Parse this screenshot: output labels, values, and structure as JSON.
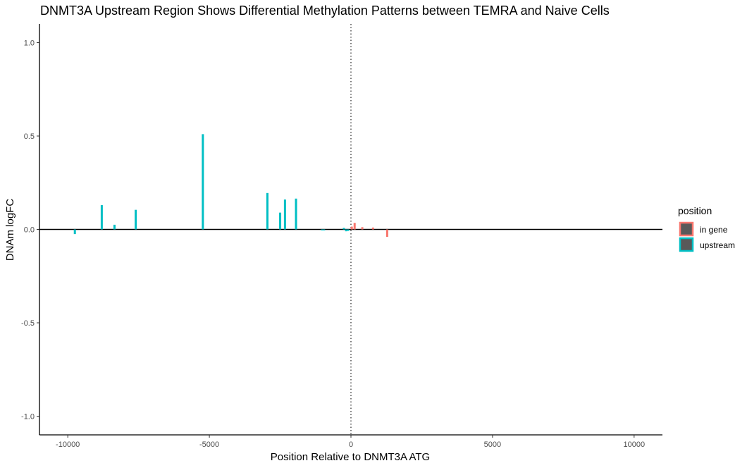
{
  "chart_data": {
    "type": "bar",
    "title": "DNMT3A Upstream Region Shows Differential Methylation Patterns between TEMRA and Naive Cells",
    "xlabel": "Position Relative to DNMT3A ATG",
    "ylabel": "DNAm logFC",
    "xlim": [
      -11000,
      11000
    ],
    "ylim": [
      -1.1,
      1.1
    ],
    "x_ticks": [
      -10000,
      -5000,
      0,
      5000,
      10000
    ],
    "x_tick_labels": [
      "-10000",
      "-5000",
      "0",
      "5000",
      "10000"
    ],
    "y_ticks": [
      -1.0,
      -0.5,
      0.0,
      0.5,
      1.0
    ],
    "y_tick_labels": [
      "-1.0",
      "-0.5",
      "0.0",
      "0.5",
      "1.0"
    ],
    "vline_x": 0,
    "hline_y": 0,
    "grid": false,
    "legend": {
      "title": "position",
      "placement": "right"
    },
    "series": [
      {
        "name": "in gene",
        "color": "#F8766D",
        "points": [
          {
            "x": 30,
            "y": 0.015
          },
          {
            "x": 130,
            "y": 0.035
          },
          {
            "x": 400,
            "y": 0.012
          },
          {
            "x": 780,
            "y": 0.01
          },
          {
            "x": 1280,
            "y": -0.04
          }
        ]
      },
      {
        "name": "upstream",
        "color": "#00BFC4",
        "points": [
          {
            "x": -9750,
            "y": -0.025
          },
          {
            "x": -8800,
            "y": 0.13
          },
          {
            "x": -8350,
            "y": 0.025
          },
          {
            "x": -7600,
            "y": 0.105
          },
          {
            "x": -5230,
            "y": 0.51
          },
          {
            "x": -2950,
            "y": 0.195
          },
          {
            "x": -2500,
            "y": 0.09
          },
          {
            "x": -2330,
            "y": 0.16
          },
          {
            "x": -1940,
            "y": 0.165
          },
          {
            "x": -1020,
            "y": -0.005
          },
          {
            "x": -950,
            "y": -0.005
          },
          {
            "x": -250,
            "y": 0.008
          },
          {
            "x": -170,
            "y": -0.01
          },
          {
            "x": -100,
            "y": -0.008
          }
        ]
      }
    ]
  }
}
